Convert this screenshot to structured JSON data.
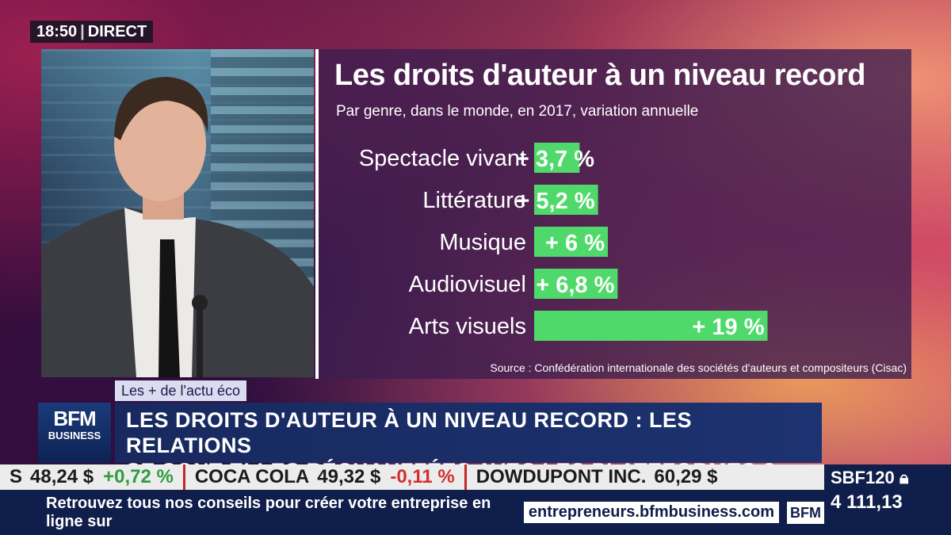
{
  "clock": {
    "time": "18:50",
    "live": "DIRECT"
  },
  "chart_data": {
    "type": "bar",
    "orientation": "horizontal",
    "title": "Les droits d'auteur à un niveau record",
    "subtitle": "Par genre, dans le monde, en 2017, variation annuelle",
    "categories": [
      "Spectacle vivant",
      "Littérature",
      "Musique",
      "Audiovisuel",
      "Arts visuels"
    ],
    "values": [
      3.7,
      5.2,
      6,
      6.8,
      19
    ],
    "value_labels": [
      "+ 3,7 %",
      "+ 5,2 %",
      "+ 6 %",
      "+ 6,8 %",
      "+ 19 %"
    ],
    "xlim": [
      0,
      20
    ],
    "bar_color": "#4fd96a",
    "source": "Source : Confédération internationale des sociétés d'auteurs et compositeurs (Cisac)"
  },
  "banner": {
    "tag": "Les + de l'actu éco",
    "logo_line1": "BFM",
    "logo_line2": "BUSINESS",
    "headline_line1": "LES DROITS D'AUTEUR À UN NIVEAU RECORD : LES RELATIONS",
    "headline_line2": "SE SONT-ELLES RÉCHAUFFÉES AVEC LES PLATEFORMES ?"
  },
  "ticker": {
    "items": [
      {
        "name": "S",
        "value": "48,24 $",
        "change": "+0,72 %",
        "direction": "up"
      },
      {
        "name": "COCA COLA",
        "value": "49,32 $",
        "change": "-0,11 %",
        "direction": "down"
      },
      {
        "name": "DOWDUPONT INC.",
        "value": "60,29 $",
        "change": "",
        "direction": "none"
      }
    ]
  },
  "index": {
    "name": "SBF120",
    "value": "4 111,13"
  },
  "bottom_bar": {
    "text": "Retrouvez tous nos conseils pour créer votre entreprise en ligne sur",
    "url": "entrepreneurs.bfmbusiness.com",
    "logo": "BFM"
  },
  "colors": {
    "accent_green": "#4fd96a",
    "navy": "#0f1e4a",
    "red": "#c62828"
  }
}
